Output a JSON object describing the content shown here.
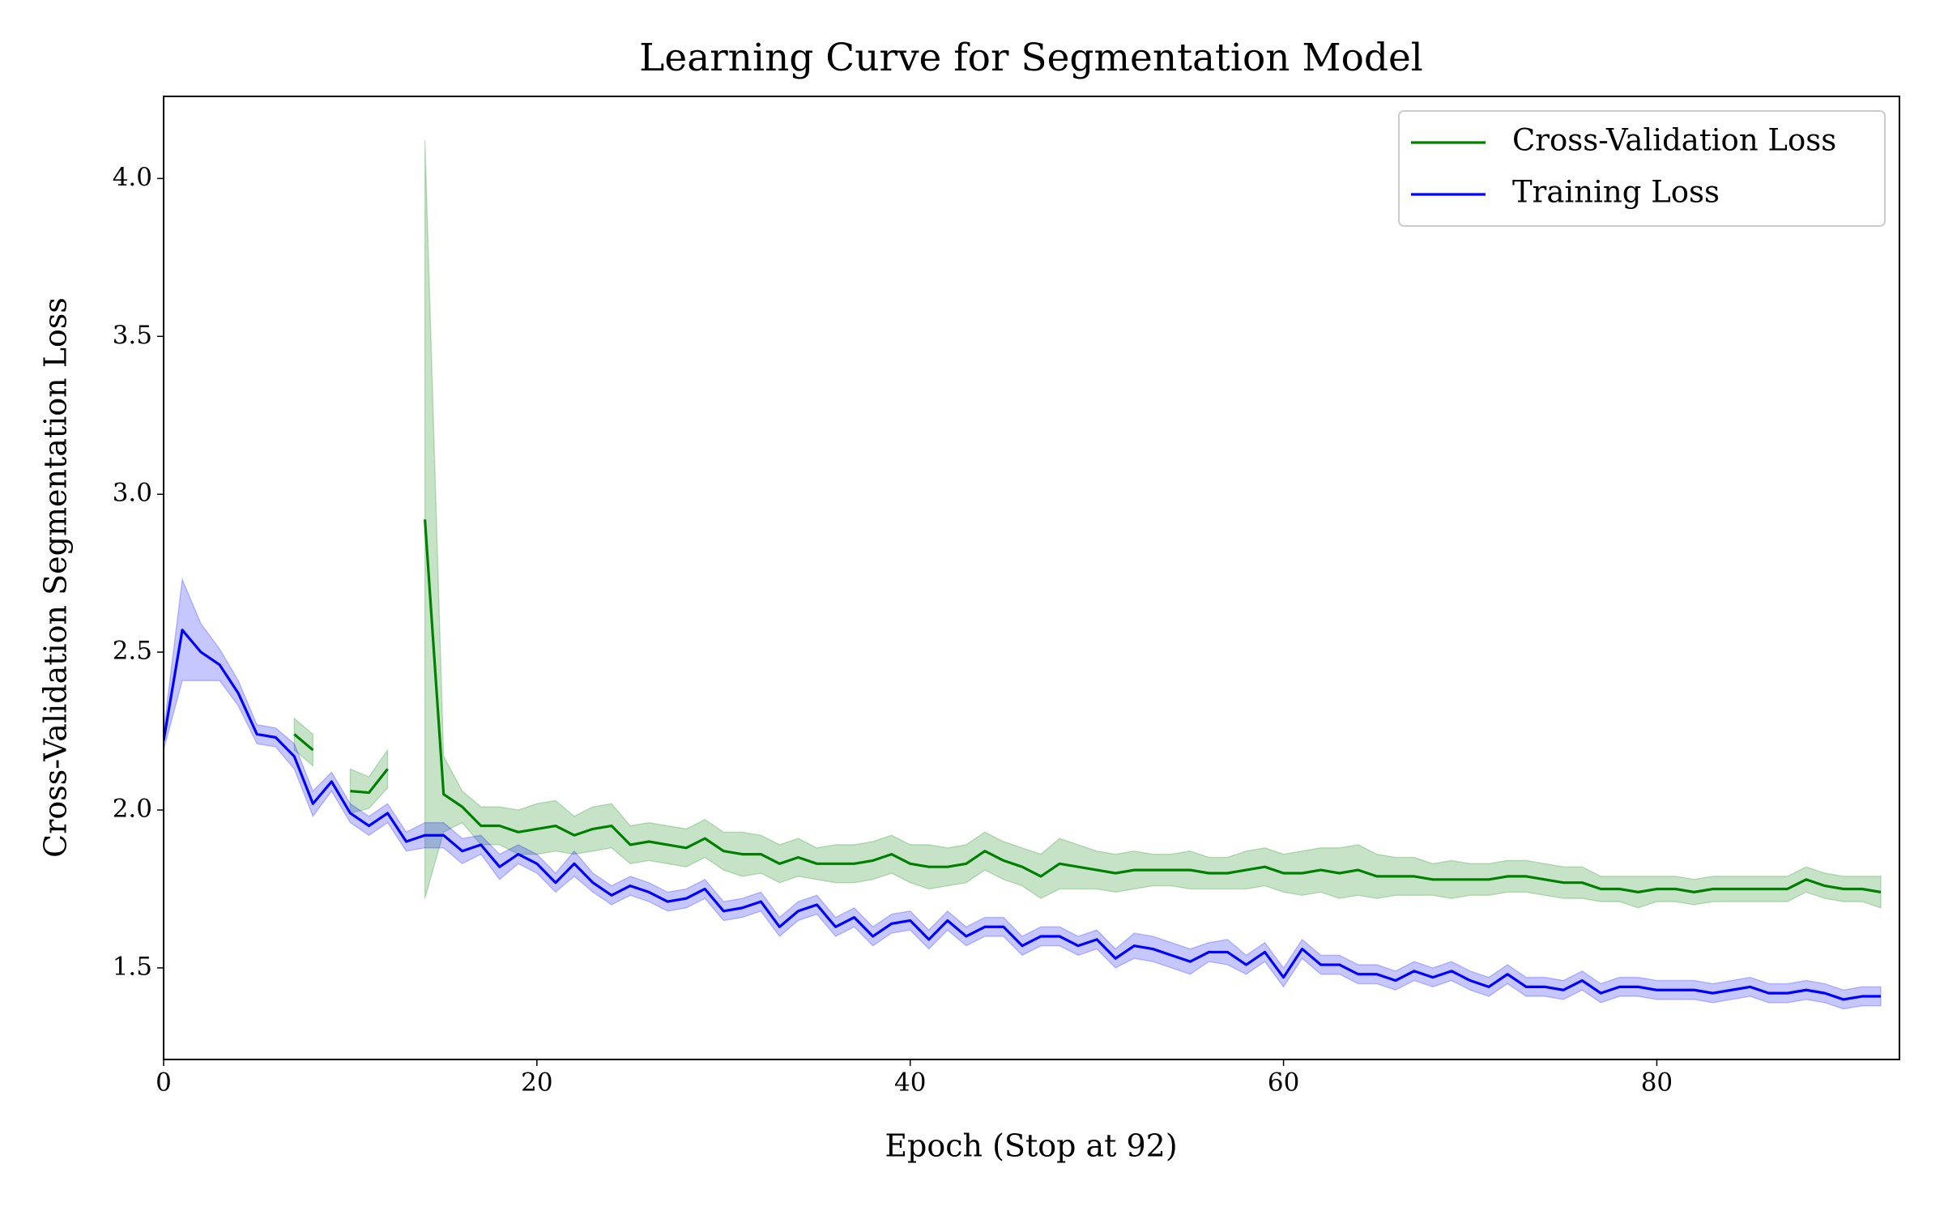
{
  "chart_data": {
    "type": "line",
    "title": "Learning Curve for Segmentation Model",
    "x_label": "Epoch (Stop at 92)",
    "y_label": "Cross-Validation Segmentation Loss",
    "x": [
      0,
      1,
      2,
      3,
      4,
      5,
      6,
      7,
      8,
      9,
      10,
      11,
      12,
      13,
      14,
      15,
      16,
      17,
      18,
      19,
      20,
      21,
      22,
      23,
      24,
      25,
      26,
      27,
      28,
      29,
      30,
      31,
      32,
      33,
      34,
      35,
      36,
      37,
      38,
      39,
      40,
      41,
      42,
      43,
      44,
      45,
      46,
      47,
      48,
      49,
      50,
      51,
      52,
      53,
      54,
      55,
      56,
      57,
      58,
      59,
      60,
      61,
      62,
      63,
      64,
      65,
      66,
      67,
      68,
      69,
      70,
      71,
      72,
      73,
      74,
      75,
      76,
      77,
      78,
      79,
      80,
      81,
      82,
      83,
      84,
      85,
      86,
      87,
      88,
      89,
      90,
      91,
      92
    ],
    "xlim": [
      0,
      93
    ],
    "xticks": [
      0,
      20,
      40,
      60,
      80
    ],
    "ylim": [
      1.21,
      4.26
    ],
    "yticks": [
      1.5,
      {
        "value": 2,
        "label": "2.0"
      },
      2.5,
      {
        "value": 3,
        "label": "3.0"
      },
      3.5,
      {
        "value": 4,
        "label": "4.0"
      }
    ],
    "legend": "upper right",
    "band_opacity": 0.22,
    "series": [
      {
        "name": "Cross-Validation Loss",
        "color": "#008000",
        "values": [
          null,
          null,
          null,
          null,
          null,
          null,
          null,
          2.24,
          2.19,
          null,
          2.06,
          2.055,
          2.13,
          null,
          2.92,
          2.05,
          2.01,
          1.95,
          1.95,
          1.93,
          1.94,
          1.95,
          1.92,
          1.94,
          1.95,
          1.89,
          1.9,
          1.89,
          1.88,
          1.91,
          1.87,
          1.86,
          1.86,
          1.83,
          1.85,
          1.83,
          1.83,
          1.83,
          1.84,
          1.86,
          1.83,
          1.82,
          1.82,
          1.83,
          1.87,
          1.84,
          1.82,
          1.79,
          1.83,
          1.82,
          1.81,
          1.8,
          1.81,
          1.81,
          1.81,
          1.81,
          1.8,
          1.8,
          1.81,
          1.82,
          1.8,
          1.8,
          1.81,
          1.8,
          1.81,
          1.79,
          1.79,
          1.79,
          1.78,
          1.78,
          1.78,
          1.78,
          1.79,
          1.79,
          1.78,
          1.77,
          1.77,
          1.75,
          1.75,
          1.74,
          1.75,
          1.75,
          1.74,
          1.75,
          1.75,
          1.75,
          1.75,
          1.75,
          1.78,
          1.76,
          1.75,
          1.75,
          1.74
        ],
        "errors": [
          null,
          null,
          null,
          null,
          null,
          null,
          null,
          0.05,
          0.05,
          null,
          0.07,
          0.05,
          0.06,
          null,
          1.2,
          0.12,
          0.05,
          0.06,
          0.06,
          0.07,
          0.08,
          0.08,
          0.06,
          0.07,
          0.07,
          0.06,
          0.06,
          0.06,
          0.06,
          0.06,
          0.06,
          0.07,
          0.06,
          0.06,
          0.06,
          0.05,
          0.06,
          0.06,
          0.06,
          0.06,
          0.06,
          0.07,
          0.06,
          0.06,
          0.06,
          0.06,
          0.06,
          0.07,
          0.08,
          0.07,
          0.06,
          0.06,
          0.06,
          0.05,
          0.05,
          0.06,
          0.05,
          0.05,
          0.06,
          0.06,
          0.06,
          0.07,
          0.07,
          0.08,
          0.08,
          0.07,
          0.06,
          0.06,
          0.05,
          0.06,
          0.05,
          0.05,
          0.05,
          0.05,
          0.05,
          0.05,
          0.05,
          0.04,
          0.04,
          0.05,
          0.04,
          0.04,
          0.04,
          0.04,
          0.04,
          0.04,
          0.04,
          0.04,
          0.04,
          0.04,
          0.04,
          0.04,
          0.05
        ]
      },
      {
        "name": "Training Loss",
        "color": "#0000ff",
        "values": [
          2.22,
          2.57,
          2.5,
          2.46,
          2.37,
          2.24,
          2.23,
          2.17,
          2.02,
          2.09,
          1.99,
          1.95,
          1.99,
          1.9,
          1.92,
          1.92,
          1.87,
          1.89,
          1.82,
          1.86,
          1.83,
          1.77,
          1.83,
          1.77,
          1.73,
          1.76,
          1.74,
          1.71,
          1.72,
          1.75,
          1.68,
          1.69,
          1.71,
          1.63,
          1.68,
          1.7,
          1.63,
          1.66,
          1.6,
          1.64,
          1.65,
          1.59,
          1.65,
          1.6,
          1.63,
          1.63,
          1.57,
          1.6,
          1.6,
          1.57,
          1.59,
          1.53,
          1.57,
          1.56,
          1.54,
          1.52,
          1.55,
          1.55,
          1.51,
          1.55,
          1.47,
          1.56,
          1.51,
          1.51,
          1.48,
          1.48,
          1.46,
          1.49,
          1.47,
          1.49,
          1.46,
          1.44,
          1.48,
          1.44,
          1.44,
          1.43,
          1.46,
          1.42,
          1.44,
          1.44,
          1.43,
          1.43,
          1.43,
          1.42,
          1.43,
          1.44,
          1.42,
          1.42,
          1.43,
          1.42,
          1.4,
          1.41,
          1.41
        ],
        "errors": [
          0.03,
          0.16,
          0.09,
          0.05,
          0.04,
          0.03,
          0.03,
          0.04,
          0.04,
          0.03,
          0.03,
          0.03,
          0.03,
          0.03,
          0.04,
          0.04,
          0.04,
          0.03,
          0.04,
          0.03,
          0.03,
          0.03,
          0.04,
          0.03,
          0.03,
          0.03,
          0.03,
          0.03,
          0.03,
          0.03,
          0.03,
          0.03,
          0.03,
          0.03,
          0.03,
          0.03,
          0.03,
          0.03,
          0.03,
          0.03,
          0.03,
          0.03,
          0.03,
          0.03,
          0.03,
          0.03,
          0.03,
          0.03,
          0.03,
          0.03,
          0.03,
          0.03,
          0.04,
          0.04,
          0.04,
          0.04,
          0.03,
          0.04,
          0.03,
          0.03,
          0.03,
          0.03,
          0.03,
          0.03,
          0.03,
          0.03,
          0.03,
          0.03,
          0.03,
          0.03,
          0.03,
          0.03,
          0.03,
          0.03,
          0.03,
          0.03,
          0.03,
          0.03,
          0.03,
          0.03,
          0.03,
          0.03,
          0.03,
          0.03,
          0.03,
          0.03,
          0.03,
          0.03,
          0.03,
          0.03,
          0.03,
          0.03,
          0.03
        ]
      }
    ]
  }
}
